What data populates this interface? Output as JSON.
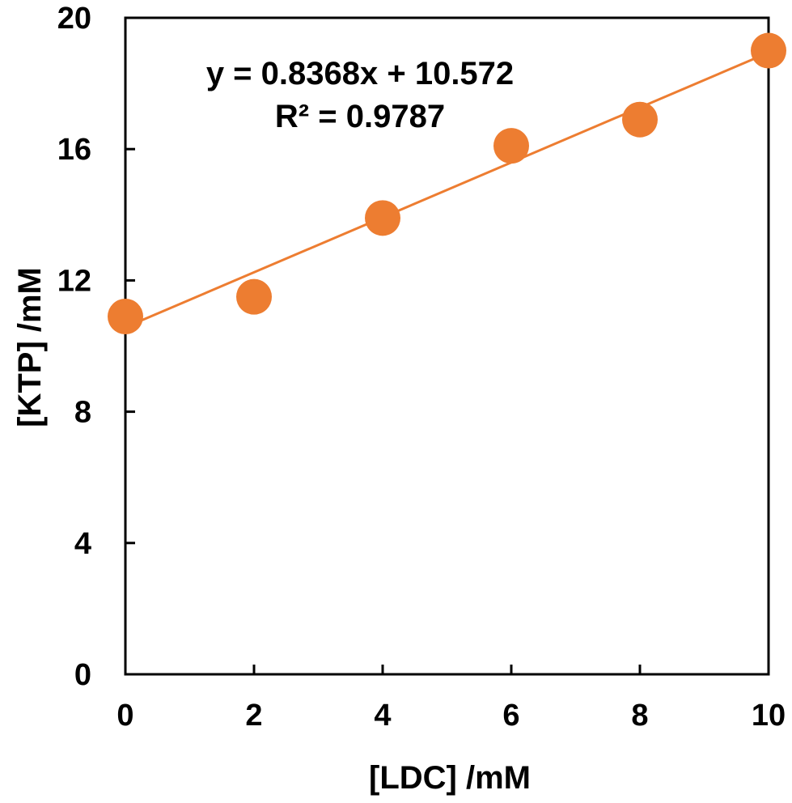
{
  "chart_data": {
    "type": "scatter",
    "xlabel": "[LDC] /mM",
    "ylabel": "[KTP] /mM",
    "xlim": [
      0,
      10
    ],
    "ylim": [
      0,
      20
    ],
    "x_ticks": [
      0,
      2,
      4,
      6,
      8,
      10
    ],
    "y_ticks": [
      0,
      4,
      8,
      12,
      16,
      20
    ],
    "grid": false,
    "series": [
      {
        "points": [
          {
            "x": 0,
            "y": 10.9
          },
          {
            "x": 2,
            "y": 11.5
          },
          {
            "x": 4,
            "y": 13.9
          },
          {
            "x": 6,
            "y": 16.1
          },
          {
            "x": 8,
            "y": 16.9
          },
          {
            "x": 10,
            "y": 19.0
          }
        ],
        "color": "#ED7D31"
      }
    ],
    "trendline": {
      "type": "linear",
      "slope": 0.8368,
      "intercept": 10.572,
      "color": "#ED7D31",
      "equation_label": "y = 0.8368x + 10.572",
      "r2_label": "R² = 0.9787"
    }
  }
}
